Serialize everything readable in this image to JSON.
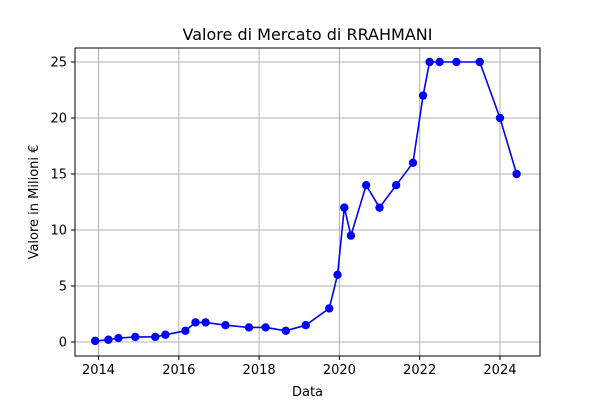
{
  "chart_data": {
    "type": "line",
    "title": "Valore di Mercato di RRAHMANI",
    "xlabel": "Data",
    "ylabel": "Valore in Milioni €",
    "xlim": [
      "2013-06-01",
      "2024-12-31"
    ],
    "ylim": [
      -1.25,
      26.25
    ],
    "x_ticks": [
      "2014",
      "2016",
      "2018",
      "2020",
      "2022",
      "2024"
    ],
    "y_ticks": [
      "0",
      "5",
      "10",
      "15",
      "20",
      "25"
    ],
    "grid": true,
    "color": "#0000ff",
    "series": [
      {
        "name": "",
        "points": [
          {
            "date": "2013-12-01",
            "value": 0.1
          },
          {
            "date": "2014-04-01",
            "value": 0.2
          },
          {
            "date": "2014-07-01",
            "value": 0.35
          },
          {
            "date": "2014-12-01",
            "value": 0.45
          },
          {
            "date": "2015-06-01",
            "value": 0.45
          },
          {
            "date": "2015-09-01",
            "value": 0.65
          },
          {
            "date": "2016-03-01",
            "value": 1.0
          },
          {
            "date": "2016-06-01",
            "value": 1.75
          },
          {
            "date": "2016-09-01",
            "value": 1.75
          },
          {
            "date": "2017-03-01",
            "value": 1.5
          },
          {
            "date": "2017-10-01",
            "value": 1.3
          },
          {
            "date": "2018-03-01",
            "value": 1.3
          },
          {
            "date": "2018-09-01",
            "value": 1.0
          },
          {
            "date": "2019-03-01",
            "value": 1.5
          },
          {
            "date": "2019-10-01",
            "value": 3.0
          },
          {
            "date": "2019-12-15",
            "value": 6.0
          },
          {
            "date": "2020-02-15",
            "value": 12.0
          },
          {
            "date": "2020-04-15",
            "value": 9.5
          },
          {
            "date": "2020-09-01",
            "value": 14.0
          },
          {
            "date": "2021-01-01",
            "value": 12.0
          },
          {
            "date": "2021-06-01",
            "value": 14.0
          },
          {
            "date": "2021-11-01",
            "value": 16.0
          },
          {
            "date": "2022-02-01",
            "value": 22.0
          },
          {
            "date": "2022-04-01",
            "value": 25.0
          },
          {
            "date": "2022-07-01",
            "value": 25.0
          },
          {
            "date": "2022-12-01",
            "value": 25.0
          },
          {
            "date": "2023-07-01",
            "value": 25.0
          },
          {
            "date": "2024-01-01",
            "value": 20.0
          },
          {
            "date": "2024-06-01",
            "value": 15.0
          }
        ]
      }
    ]
  }
}
